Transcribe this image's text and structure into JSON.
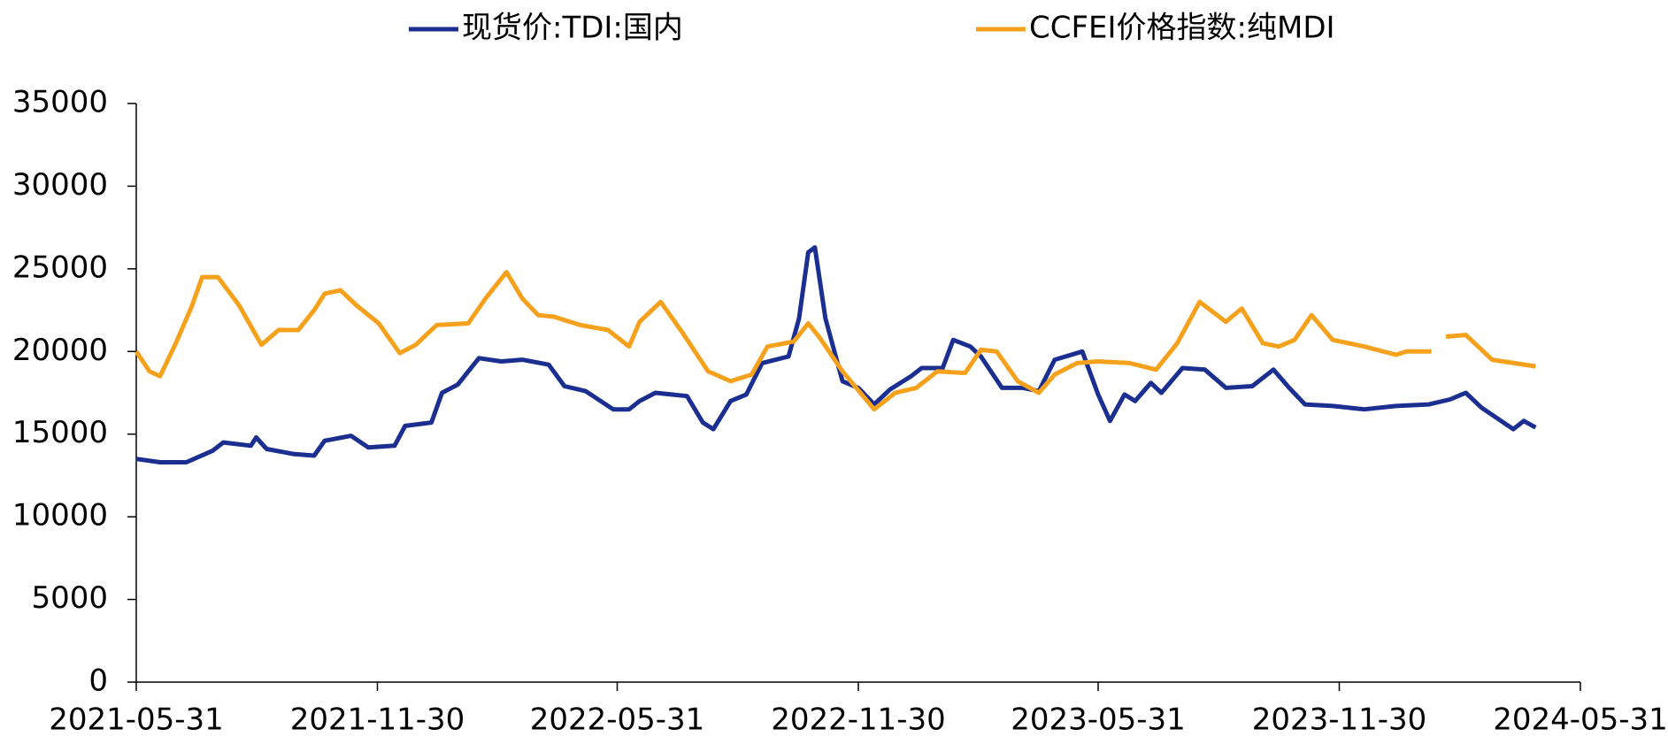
{
  "chart_data": {
    "type": "line",
    "series": [
      {
        "name": "现货价:TDI:国内",
        "color": "#1b2f91",
        "x": [
          "2021-05-31",
          "2021-06-18",
          "2021-07-08",
          "2021-07-28",
          "2021-08-05",
          "2021-08-26",
          "2021-08-30",
          "2021-09-07",
          "2021-09-27",
          "2021-10-13",
          "2021-10-21",
          "2021-11-10",
          "2021-11-23",
          "2021-12-13",
          "2021-12-21",
          "2022-01-10",
          "2022-01-18",
          "2022-01-30",
          "2022-02-15",
          "2022-03-04",
          "2022-03-20",
          "2022-04-09",
          "2022-04-21",
          "2022-05-07",
          "2022-05-28",
          "2022-06-09",
          "2022-06-17",
          "2022-06-29",
          "2022-07-23",
          "2022-08-04",
          "2022-08-12",
          "2022-08-25",
          "2022-09-06",
          "2022-09-18",
          "2022-10-08",
          "2022-10-16",
          "2022-10-23",
          "2022-10-28",
          "2022-11-05",
          "2022-11-18",
          "2022-11-30",
          "2022-12-12",
          "2022-12-24",
          "2023-01-09",
          "2023-01-17",
          "2023-02-02",
          "2023-02-10",
          "2023-02-23",
          "2023-03-03",
          "2023-03-19",
          "2023-04-04",
          "2023-04-16",
          "2023-04-28",
          "2023-05-19",
          "2023-05-31",
          "2023-06-09",
          "2023-06-20",
          "2023-06-28",
          "2023-07-10",
          "2023-07-18",
          "2023-08-03",
          "2023-08-20",
          "2023-09-05",
          "2023-09-25",
          "2023-10-11",
          "2023-10-23",
          "2023-11-04",
          "2023-11-25",
          "2023-12-19",
          "2024-01-12",
          "2024-02-06",
          "2024-02-22",
          "2024-03-05",
          "2024-03-17",
          "2024-04-10",
          "2024-04-18",
          "2024-04-27"
        ],
        "values": [
          13500,
          13300,
          13300,
          14000,
          14500,
          14300,
          14800,
          14100,
          13800,
          13700,
          14600,
          14900,
          14200,
          14300,
          15500,
          15700,
          17500,
          18000,
          19600,
          19400,
          19500,
          19200,
          17900,
          17600,
          16500,
          16500,
          17000,
          17500,
          17300,
          15700,
          15300,
          17000,
          17400,
          19300,
          19700,
          22000,
          26000,
          26300,
          22000,
          18200,
          17800,
          16800,
          17700,
          18500,
          19000,
          19000,
          20700,
          20300,
          19700,
          17800,
          17800,
          17600,
          19500,
          20000,
          17400,
          15800,
          17400,
          17000,
          18100,
          17500,
          19000,
          18900,
          17800,
          17900,
          18900,
          17800,
          16800,
          16700,
          16500,
          16700,
          16800,
          17100,
          17500,
          16600,
          15300,
          15800,
          15400
        ]
      },
      {
        "name": "CCFEI价格指数:纯MDI",
        "color": "#f5a11c",
        "x": [
          "2021-05-31",
          "2021-06-10",
          "2021-06-18",
          "2021-06-30",
          "2021-07-12",
          "2021-07-20",
          "2021-08-01",
          "2021-08-17",
          "2021-09-03",
          "2021-09-16",
          "2021-10-01",
          "2021-10-13",
          "2021-10-21",
          "2021-11-02",
          "2021-11-14",
          "2021-12-01",
          "2021-12-17",
          "2021-12-29",
          "2022-01-14",
          "2022-02-07",
          "2022-02-20",
          "2022-03-08",
          "2022-03-20",
          "2022-04-01",
          "2022-04-13",
          "2022-05-03",
          "2022-05-24",
          "2022-06-09",
          "2022-06-17",
          "2022-07-03",
          "2022-07-19",
          "2022-08-08",
          "2022-08-25",
          "2022-09-10",
          "2022-09-22",
          "2022-10-12",
          "2022-10-23",
          "2022-11-01",
          "2022-11-18",
          "2022-12-12",
          "2022-12-28",
          "2023-01-13",
          "2023-01-29",
          "2023-02-19",
          "2023-03-03",
          "2023-03-15",
          "2023-03-31",
          "2023-04-16",
          "2023-04-28",
          "2023-05-15",
          "2023-05-31",
          "2023-06-24",
          "2023-07-14",
          "2023-07-30",
          "2023-08-16",
          "2023-09-05",
          "2023-09-17",
          "2023-10-03",
          "2023-10-15",
          "2023-10-27",
          "2023-11-09",
          "2023-11-25",
          "2023-12-19",
          "2024-01-12",
          "2024-01-20",
          "2024-02-08",
          "2024-02-14",
          "2024-02-19",
          "2024-03-05",
          "2024-03-25",
          "2024-04-27"
        ],
        "values": [
          20000,
          18800,
          18500,
          20500,
          22700,
          24500,
          24500,
          22800,
          20400,
          21300,
          21300,
          22500,
          23500,
          23700,
          22800,
          21700,
          19900,
          20400,
          21600,
          21700,
          23200,
          24800,
          23200,
          22200,
          22100,
          21600,
          21300,
          20300,
          21800,
          23000,
          21200,
          18800,
          18200,
          18600,
          20300,
          20600,
          21700,
          20800,
          18800,
          16500,
          17500,
          17800,
          18800,
          18700,
          20100,
          20000,
          18200,
          17500,
          18600,
          19300,
          19400,
          19300,
          18900,
          20500,
          23000,
          21800,
          22600,
          20500,
          20300,
          20700,
          22200,
          20700,
          20300,
          19800,
          20000,
          20000,
          null,
          20900,
          21000,
          19500,
          19100
        ]
      }
    ],
    "xlim": [
      "2021-05-31",
      "2024-05-31"
    ],
    "xticks": [
      "2021-05-31",
      "2021-11-30",
      "2022-05-31",
      "2022-11-30",
      "2023-05-31",
      "2023-11-30",
      "2024-05-31"
    ],
    "ylim": [
      0,
      35000
    ],
    "yticks": [
      0,
      5000,
      10000,
      15000,
      20000,
      25000,
      30000,
      35000
    ],
    "legend": "top"
  }
}
